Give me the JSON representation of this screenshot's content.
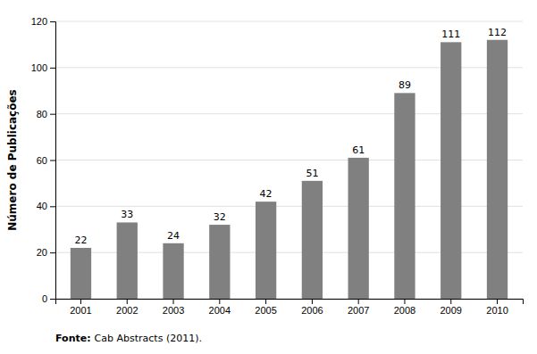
{
  "chart_data": {
    "type": "bar",
    "categories": [
      "2001",
      "2002",
      "2003",
      "2004",
      "2005",
      "2006",
      "2007",
      "2008",
      "2009",
      "2010"
    ],
    "values": [
      22,
      33,
      24,
      32,
      42,
      51,
      61,
      89,
      111,
      112
    ],
    "color": "#808080",
    "y_label": "Número de Publicações",
    "ylim": [
      0,
      120
    ],
    "yticks": [
      0,
      20,
      40,
      60,
      80,
      100,
      120
    ],
    "grid": true,
    "data_labels": true,
    "annotations": [
      "Fonte:",
      "Cab Abstracts (2011)."
    ]
  }
}
